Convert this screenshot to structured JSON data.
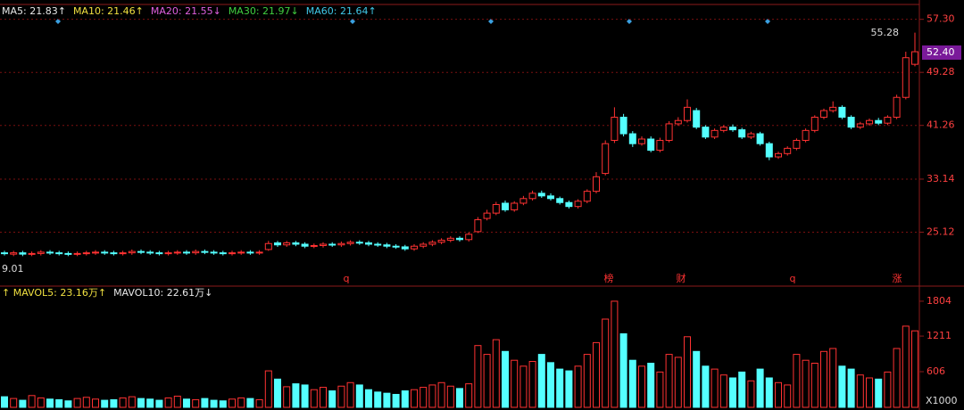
{
  "chart_data": [
    {
      "type": "candlestick",
      "legend": [
        {
          "text": "MA5: 21.83↑",
          "color": "#e8e8e8"
        },
        {
          "text": "MA10: 21.46↑",
          "color": "#f0e040"
        },
        {
          "text": "MA20: 21.55↓",
          "color": "#e060e0"
        },
        {
          "text": "MA30: 21.97↓",
          "color": "#40d040"
        },
        {
          "text": "MA60: 21.64↑",
          "color": "#40c8e8"
        }
      ],
      "start_label": "9.01",
      "max_label": "55.28",
      "last_label": "52.40",
      "annotations": [
        "q",
        "榜",
        "财",
        "q",
        "涨"
      ],
      "up_color": "#ff3232",
      "down_color": "#54ffff",
      "ylim": [
        17.1,
        58.2
      ],
      "yticks": [
        {
          "value": 57.3,
          "label": "57.30"
        },
        49.28,
        41.26,
        33.14,
        25.12
      ],
      "grid": true,
      "open": [
        22.0,
        21.8,
        22.0,
        21.8,
        21.9,
        22.1,
        22.0,
        21.9,
        21.8,
        21.9,
        22.0,
        22.1,
        22.0,
        21.9,
        22.0,
        22.2,
        22.1,
        22.0,
        21.9,
        22.0,
        22.1,
        22.0,
        22.2,
        22.1,
        22.0,
        21.9,
        22.0,
        22.1,
        22.0,
        22.5,
        23.5,
        23.2,
        23.5,
        23.3,
        23.0,
        23.1,
        23.3,
        23.2,
        23.4,
        23.6,
        23.5,
        23.3,
        23.2,
        23.0,
        22.9,
        22.6,
        23.0,
        23.3,
        23.6,
        23.9,
        24.2,
        24.0,
        25.2,
        27.2,
        28.0,
        29.5,
        28.5,
        29.5,
        30.2,
        31.0,
        30.6,
        30.2,
        29.6,
        29.0,
        29.8,
        31.3,
        34.0,
        39.0,
        42.5,
        40.0,
        38.5,
        39.2,
        37.5,
        39.0,
        41.5,
        42.0,
        43.5,
        41.0,
        39.5,
        40.5,
        41.0,
        40.6,
        39.5,
        40.0,
        38.5,
        36.5,
        37.0,
        37.8,
        39.0,
        40.5,
        42.5,
        43.5,
        44.0,
        42.5,
        41.0,
        41.5,
        42.0,
        41.6,
        42.5,
        45.5,
        50.5
      ],
      "high": [
        22.3,
        22.3,
        22.3,
        22.2,
        22.4,
        22.4,
        22.3,
        22.2,
        22.2,
        22.3,
        22.4,
        22.4,
        22.3,
        22.3,
        22.5,
        22.5,
        22.4,
        22.3,
        22.3,
        22.4,
        22.4,
        22.5,
        22.5,
        22.4,
        22.3,
        22.3,
        22.4,
        22.4,
        22.4,
        23.8,
        23.8,
        23.8,
        23.8,
        23.6,
        23.4,
        23.6,
        23.6,
        23.7,
        23.9,
        23.9,
        23.8,
        23.6,
        23.5,
        23.3,
        23.2,
        23.3,
        23.6,
        23.9,
        24.2,
        24.5,
        24.5,
        25.1,
        27.4,
        28.5,
        29.7,
        29.9,
        29.8,
        30.6,
        31.4,
        31.4,
        31.0,
        30.5,
        29.9,
        30.1,
        31.6,
        34.2,
        39.0,
        44.0,
        43.0,
        40.4,
        39.6,
        39.6,
        39.4,
        41.9,
        42.5,
        45.2,
        43.9,
        41.3,
        40.8,
        41.3,
        41.4,
        40.9,
        40.3,
        40.3,
        38.8,
        37.3,
        38.1,
        39.3,
        40.8,
        42.8,
        43.8,
        44.9,
        44.3,
        42.8,
        41.8,
        42.3,
        42.4,
        42.8,
        45.9,
        52.4,
        55.28
      ],
      "low": [
        21.6,
        21.5,
        21.5,
        21.5,
        21.6,
        21.7,
        21.6,
        21.5,
        21.5,
        21.6,
        21.7,
        21.7,
        21.6,
        21.6,
        21.7,
        21.8,
        21.7,
        21.6,
        21.6,
        21.7,
        21.7,
        21.7,
        21.8,
        21.7,
        21.6,
        21.6,
        21.7,
        21.7,
        21.7,
        22.3,
        22.9,
        22.9,
        23.0,
        22.7,
        22.7,
        22.8,
        22.9,
        22.9,
        23.1,
        23.2,
        23.0,
        22.9,
        22.7,
        22.6,
        22.3,
        22.3,
        22.7,
        23.0,
        23.3,
        23.6,
        23.7,
        23.7,
        25.0,
        26.9,
        27.7,
        28.2,
        28.2,
        29.2,
        29.9,
        30.3,
        29.9,
        29.3,
        28.7,
        28.7,
        29.5,
        31.0,
        33.7,
        38.6,
        39.6,
        38.0,
        38.2,
        37.2,
        37.2,
        38.7,
        41.2,
        41.7,
        40.7,
        39.2,
        39.2,
        40.2,
        40.3,
        39.2,
        39.2,
        38.2,
        36.0,
        36.2,
        36.7,
        37.5,
        38.7,
        40.2,
        42.2,
        43.2,
        42.2,
        40.7,
        40.7,
        41.2,
        41.3,
        41.3,
        42.2,
        45.2,
        50.2
      ],
      "close": [
        21.9,
        22.0,
        21.8,
        21.9,
        22.1,
        22.0,
        21.9,
        21.8,
        21.9,
        22.0,
        22.1,
        22.0,
        21.9,
        22.0,
        22.2,
        22.1,
        22.0,
        21.9,
        22.0,
        22.1,
        22.0,
        22.2,
        22.1,
        22.0,
        21.9,
        22.0,
        22.1,
        22.0,
        22.1,
        23.4,
        23.2,
        23.5,
        23.3,
        23.0,
        23.1,
        23.3,
        23.2,
        23.4,
        23.6,
        23.5,
        23.3,
        23.2,
        23.0,
        22.9,
        22.6,
        23.0,
        23.3,
        23.6,
        23.9,
        24.2,
        24.0,
        24.8,
        27.0,
        28.0,
        29.3,
        28.5,
        29.5,
        30.2,
        31.0,
        30.6,
        30.2,
        29.6,
        29.0,
        29.8,
        31.3,
        33.5,
        38.5,
        42.5,
        40.0,
        38.5,
        39.2,
        37.5,
        39.0,
        41.5,
        42.0,
        44.0,
        41.0,
        39.5,
        40.5,
        41.0,
        40.6,
        39.5,
        40.0,
        38.5,
        36.5,
        37.0,
        37.8,
        39.0,
        40.5,
        42.5,
        43.5,
        44.0,
        42.5,
        41.0,
        41.5,
        42.0,
        41.6,
        42.5,
        45.5,
        51.5,
        52.4
      ]
    },
    {
      "type": "bar",
      "legend": [
        {
          "text": "↑ MAVOL5: 23.16万↑",
          "color": "#f0e040"
        },
        {
          "text": "MAVOL10: 22.61万↓",
          "color": "#e8e8e8"
        }
      ],
      "unit_label": "X1000",
      "ylim": [
        0,
        2000
      ],
      "yticks": [
        1804,
        1211,
        606
      ],
      "values": [
        180,
        150,
        120,
        200,
        160,
        140,
        130,
        110,
        150,
        170,
        140,
        120,
        130,
        160,
        180,
        150,
        140,
        120,
        160,
        190,
        140,
        130,
        150,
        120,
        110,
        140,
        160,
        150,
        130,
        620,
        480,
        350,
        400,
        380,
        300,
        340,
        280,
        360,
        420,
        380,
        300,
        260,
        240,
        220,
        280,
        300,
        340,
        380,
        420,
        360,
        320,
        400,
        1050,
        900,
        1150,
        950,
        800,
        700,
        780,
        900,
        760,
        650,
        620,
        700,
        900,
        1100,
        1500,
        1804,
        1250,
        800,
        700,
        750,
        600,
        900,
        850,
        1200,
        950,
        700,
        650,
        550,
        500,
        600,
        450,
        650,
        500,
        420,
        380,
        900,
        800,
        750,
        950,
        1000,
        700,
        650,
        550,
        500,
        480,
        600,
        1000,
        1380,
        1300
      ]
    }
  ]
}
